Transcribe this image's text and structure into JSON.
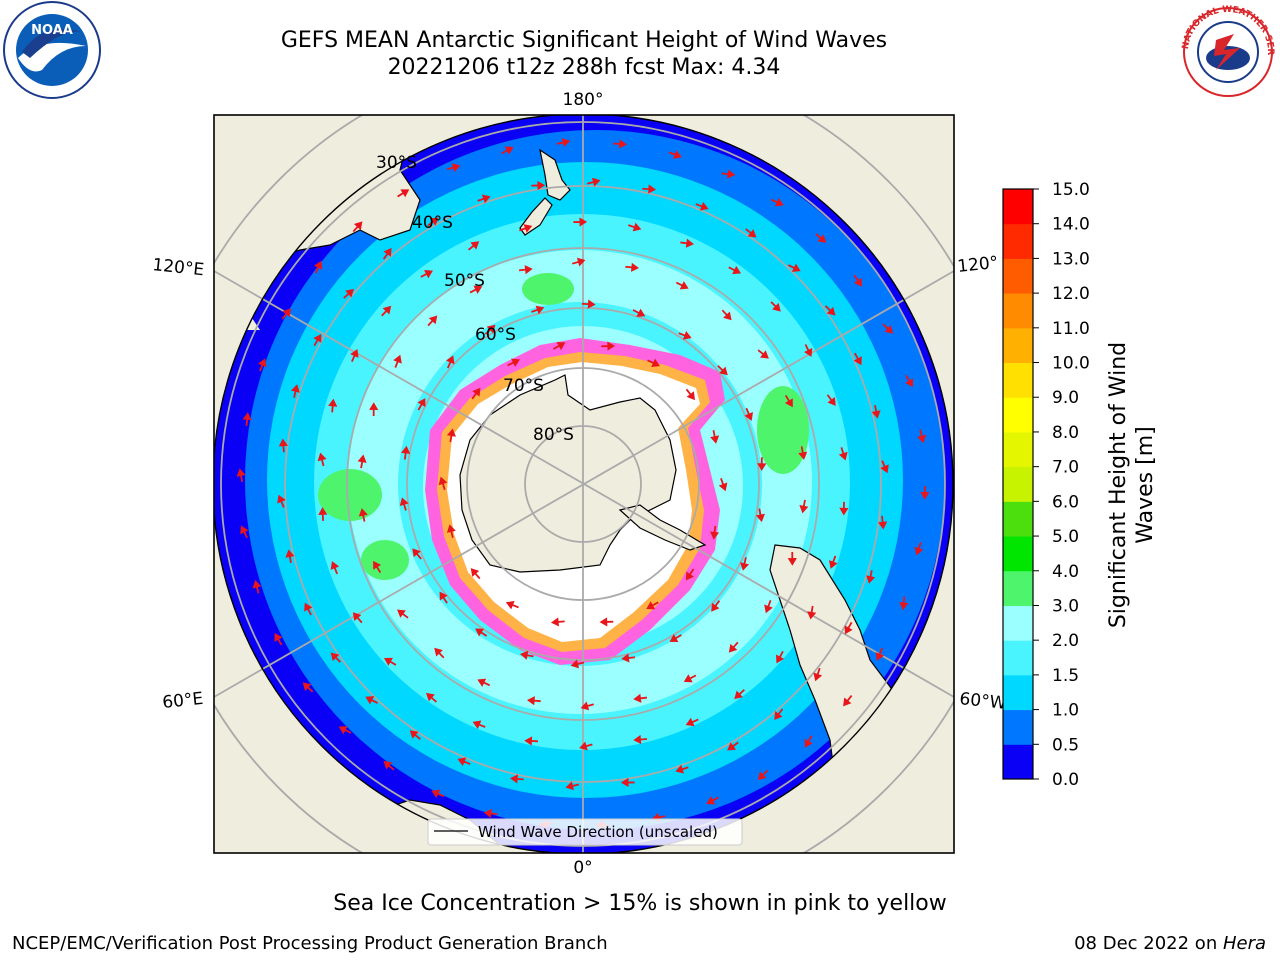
{
  "title": {
    "line1": "GEFS MEAN Antarctic Significant Height of Wind Waves",
    "line2": "20221206 t12z 288h fcst   Max: 4.34"
  },
  "map": {
    "projection": "south-polar-stereographic",
    "longitude_labels": [
      "180°",
      "120°E",
      "120°",
      "60°E",
      "60°W",
      "0°"
    ],
    "latitude_labels": [
      "30°S",
      "40°S",
      "50°S",
      "60°S",
      "70°S",
      "80°S"
    ],
    "legend_label": "Wind Wave Direction (unscaled)",
    "land_color": "#efedde",
    "arrow_color": "#e8161a"
  },
  "colorbar": {
    "label_line1": "Significant Height of Wind",
    "label_line2": "Waves [m]",
    "ticks": [
      "0.0",
      "0.5",
      "1.0",
      "1.5",
      "2.0",
      "3.0",
      "4.0",
      "5.0",
      "6.0",
      "7.0",
      "8.0",
      "9.0",
      "10.0",
      "11.0",
      "12.0",
      "13.0",
      "14.0",
      "15.0"
    ],
    "colors": [
      "#0a00f5",
      "#0077ff",
      "#00d8ff",
      "#49f4ff",
      "#9cffff",
      "#4ef56c",
      "#00e600",
      "#4cdf0d",
      "#c7f200",
      "#e5f700",
      "#ffff00",
      "#ffe000",
      "#ffb000",
      "#ff8c00",
      "#ff5c00",
      "#ff2a00",
      "#ff0000"
    ]
  },
  "subtitle": "Sea Ice Concentration > 15% is shown in pink to yellow",
  "footer": {
    "left": "NCEP/EMC/Verification Post Processing Product Generation Branch",
    "date": "08 Dec 2022 on ",
    "machine": "Hera"
  },
  "logos": {
    "noaa_text": "NOAA",
    "nws_text": "NATIONAL WEATHER SERVICE"
  }
}
